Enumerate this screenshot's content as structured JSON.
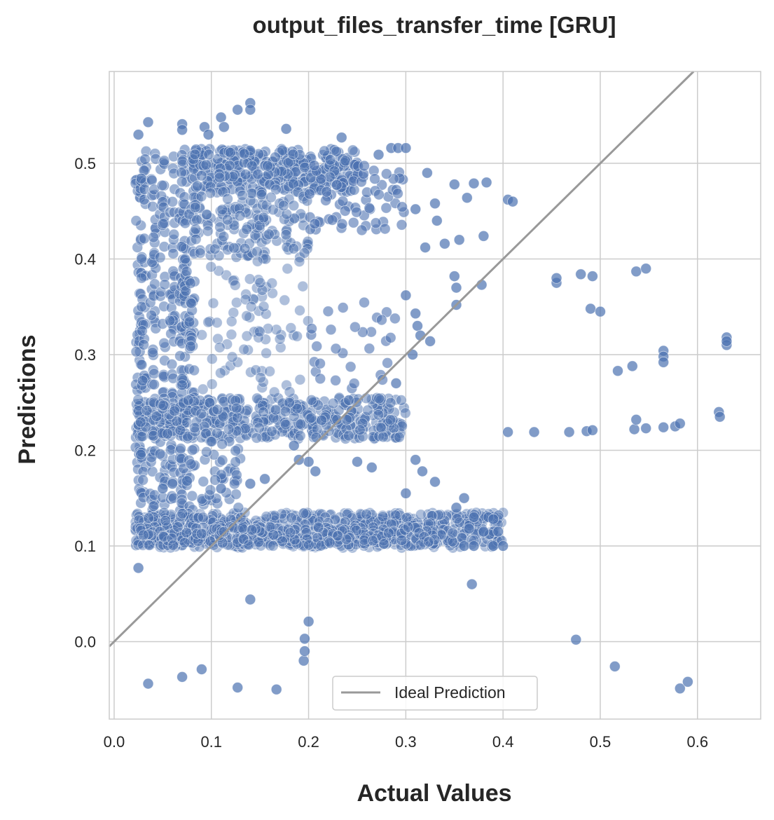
{
  "chart_data": {
    "type": "scatter",
    "title": "output_files_transfer_time [GRU]",
    "xlabel": "Actual Values",
    "ylabel": "Predictions",
    "xlim": [
      -0.005,
      0.665
    ],
    "ylim": [
      -0.081,
      0.596
    ],
    "x_ticks": [
      0.0,
      0.1,
      0.2,
      0.3,
      0.4,
      0.5,
      0.6
    ],
    "x_tick_labels": [
      "0.0",
      "0.1",
      "0.2",
      "0.3",
      "0.4",
      "0.5",
      "0.6"
    ],
    "y_ticks": [
      0.0,
      0.1,
      0.2,
      0.3,
      0.4,
      0.5
    ],
    "y_tick_labels": [
      "0.0",
      "0.1",
      "0.2",
      "0.3",
      "0.4",
      "0.5"
    ],
    "grid": true,
    "legend": {
      "position": "bottom-center",
      "entries": [
        "Ideal Prediction"
      ]
    },
    "colors": {
      "points": "#4c72b0",
      "ideal_line": "#999999",
      "grid": "#cccccc",
      "spine": "#cccccc"
    },
    "ideal_line": {
      "from": [
        -0.005,
        -0.005
      ],
      "to": [
        0.596,
        0.596
      ]
    },
    "series": [
      {
        "name": "",
        "points": [
          [
            0.025,
            0.077
          ],
          [
            0.035,
            -0.044
          ],
          [
            0.07,
            -0.037
          ],
          [
            0.09,
            -0.029
          ],
          [
            0.127,
            -0.048
          ],
          [
            0.167,
            -0.05
          ],
          [
            0.195,
            -0.02
          ],
          [
            0.196,
            -0.01
          ],
          [
            0.196,
            0.003
          ],
          [
            0.2,
            0.021
          ],
          [
            0.14,
            0.044
          ],
          [
            0.368,
            0.06
          ],
          [
            0.475,
            0.002
          ],
          [
            0.515,
            -0.026
          ],
          [
            0.582,
            -0.049
          ],
          [
            0.59,
            -0.042
          ],
          [
            0.025,
            0.53
          ],
          [
            0.035,
            0.543
          ],
          [
            0.07,
            0.541
          ],
          [
            0.07,
            0.535
          ],
          [
            0.093,
            0.538
          ],
          [
            0.097,
            0.53
          ],
          [
            0.11,
            0.548
          ],
          [
            0.113,
            0.538
          ],
          [
            0.127,
            0.556
          ],
          [
            0.14,
            0.563
          ],
          [
            0.14,
            0.556
          ],
          [
            0.177,
            0.536
          ],
          [
            0.234,
            0.527
          ],
          [
            0.272,
            0.509
          ],
          [
            0.285,
            0.516
          ],
          [
            0.292,
            0.516
          ],
          [
            0.3,
            0.516
          ],
          [
            0.322,
            0.49
          ],
          [
            0.35,
            0.478
          ],
          [
            0.37,
            0.479
          ],
          [
            0.383,
            0.48
          ],
          [
            0.363,
            0.464
          ],
          [
            0.405,
            0.462
          ],
          [
            0.41,
            0.46
          ],
          [
            0.38,
            0.424
          ],
          [
            0.355,
            0.42
          ],
          [
            0.34,
            0.416
          ],
          [
            0.32,
            0.412
          ],
          [
            0.33,
            0.458
          ],
          [
            0.332,
            0.44
          ],
          [
            0.31,
            0.452
          ],
          [
            0.35,
            0.382
          ],
          [
            0.352,
            0.37
          ],
          [
            0.352,
            0.352
          ],
          [
            0.378,
            0.373
          ],
          [
            0.31,
            0.343
          ],
          [
            0.312,
            0.33
          ],
          [
            0.315,
            0.32
          ],
          [
            0.3,
            0.362
          ],
          [
            0.325,
            0.314
          ],
          [
            0.29,
            0.27
          ],
          [
            0.307,
            0.3
          ],
          [
            0.455,
            0.375
          ],
          [
            0.455,
            0.38
          ],
          [
            0.48,
            0.384
          ],
          [
            0.492,
            0.382
          ],
          [
            0.49,
            0.348
          ],
          [
            0.5,
            0.345
          ],
          [
            0.537,
            0.387
          ],
          [
            0.547,
            0.39
          ],
          [
            0.518,
            0.283
          ],
          [
            0.533,
            0.288
          ],
          [
            0.565,
            0.304
          ],
          [
            0.565,
            0.298
          ],
          [
            0.565,
            0.292
          ],
          [
            0.63,
            0.318
          ],
          [
            0.63,
            0.31
          ],
          [
            0.63,
            0.314
          ],
          [
            0.405,
            0.219
          ],
          [
            0.432,
            0.219
          ],
          [
            0.468,
            0.219
          ],
          [
            0.486,
            0.22
          ],
          [
            0.492,
            0.221
          ],
          [
            0.535,
            0.222
          ],
          [
            0.537,
            0.232
          ],
          [
            0.547,
            0.223
          ],
          [
            0.565,
            0.224
          ],
          [
            0.577,
            0.225
          ],
          [
            0.582,
            0.228
          ],
          [
            0.622,
            0.24
          ],
          [
            0.623,
            0.235
          ],
          [
            0.36,
            0.15
          ],
          [
            0.352,
            0.14
          ],
          [
            0.33,
            0.167
          ],
          [
            0.317,
            0.178
          ],
          [
            0.31,
            0.19
          ],
          [
            0.3,
            0.155
          ],
          [
            0.25,
            0.188
          ],
          [
            0.265,
            0.182
          ],
          [
            0.2,
            0.188
          ],
          [
            0.207,
            0.178
          ],
          [
            0.19,
            0.19
          ],
          [
            0.185,
            0.205
          ],
          [
            0.155,
            0.17
          ],
          [
            0.14,
            0.165
          ],
          [
            0.11,
            0.16
          ],
          [
            0.06,
            0.165
          ],
          [
            0.075,
            0.168
          ],
          [
            0.05,
            0.16
          ],
          [
            0.36,
            0.1
          ],
          [
            0.37,
            0.1
          ],
          [
            0.39,
            0.1
          ],
          [
            0.4,
            0.1
          ],
          [
            0.395,
            0.115
          ],
          [
            0.38,
            0.115
          ],
          [
            0.385,
            0.13
          ],
          [
            0.39,
            0.128
          ],
          [
            0.37,
            0.13
          ],
          [
            0.365,
            0.118
          ]
        ]
      }
    ]
  }
}
